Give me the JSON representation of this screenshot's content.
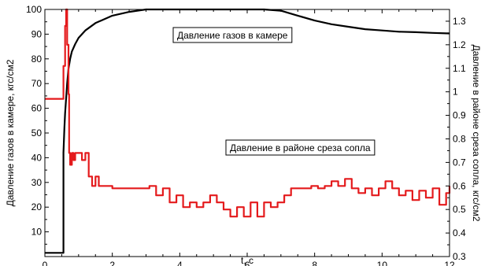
{
  "chart_data": {
    "type": "line",
    "xlabel": "t, c",
    "y1label": "Давление газов в камере, кгс/см2",
    "y2label": "Давление в районе среза сопла, кгс/см2",
    "xlim": [
      0,
      12
    ],
    "y1lim": [
      0,
      100
    ],
    "y2lim": [
      0.3,
      1.35
    ],
    "xticks": [
      "0",
      "2",
      "4",
      "6",
      "8",
      "10",
      "12"
    ],
    "y1ticks": [
      "10",
      "20",
      "30",
      "40",
      "50",
      "60",
      "70",
      "80",
      "90",
      "100"
    ],
    "y2ticks": [
      "0.3",
      "0.4",
      "0.5",
      "0.6",
      "0.7",
      "0.8",
      "0.9",
      "1",
      "1.1",
      "1.2",
      "1.3"
    ],
    "grid": false,
    "annotations": [
      {
        "text": "Давление газов в камере",
        "series": "chamber"
      },
      {
        "text": "Давление в районе среза сопла",
        "series": "nozzle"
      }
    ],
    "series": [
      {
        "id": "chamber",
        "axis": "left",
        "color": "#000000",
        "x": [
          0,
          0.4,
          0.5,
          0.55,
          0.55,
          0.58,
          0.6,
          0.63,
          0.66,
          0.7,
          0.75,
          0.8,
          0.9,
          1.0,
          1.2,
          1.5,
          2.0,
          2.5,
          3.0,
          3.5,
          4.0,
          4.5,
          5.0,
          5.5,
          6.0,
          6.5,
          7.0,
          7.5,
          8.0,
          8.5,
          9.0,
          9.5,
          10.0,
          10.5,
          11.0,
          11.5,
          12.0
        ],
        "y": [
          1.5,
          1.5,
          1.5,
          1.5,
          42,
          52,
          58,
          64,
          70,
          76,
          80,
          83,
          86,
          88.5,
          91.5,
          94.5,
          97.5,
          99,
          100,
          100.5,
          101,
          101.3,
          101.5,
          101.8,
          101.5,
          100.5,
          99.5,
          97.5,
          95.5,
          94,
          93,
          92,
          91.5,
          91,
          90.8,
          90.5,
          90.3
        ]
      },
      {
        "id": "nozzle",
        "axis": "right",
        "color": "#e41a1c",
        "x": [
          0,
          0.55,
          0.55,
          0.6,
          0.63,
          0.66,
          0.7,
          0.72,
          0.75,
          0.8,
          0.85,
          0.9,
          1.0,
          1.1,
          1.2,
          1.3,
          1.4,
          1.5,
          1.6,
          1.8,
          2.0,
          2.3,
          2.6,
          2.9,
          3.1,
          3.3,
          3.5,
          3.7,
          3.9,
          4.1,
          4.3,
          4.5,
          4.7,
          4.9,
          5.1,
          5.3,
          5.5,
          5.7,
          5.9,
          6.1,
          6.3,
          6.5,
          6.7,
          6.9,
          7.1,
          7.3,
          7.5,
          7.7,
          7.9,
          8.1,
          8.3,
          8.5,
          8.7,
          8.9,
          9.1,
          9.3,
          9.5,
          9.7,
          9.9,
          10.1,
          10.3,
          10.5,
          10.7,
          10.9,
          11.1,
          11.3,
          11.5,
          11.7,
          11.9,
          12.0
        ],
        "y": [
          0.97,
          0.97,
          1.11,
          1.28,
          1.36,
          1.2,
          0.99,
          0.74,
          0.69,
          0.74,
          0.71,
          0.74,
          0.74,
          0.71,
          0.74,
          0.64,
          0.6,
          0.64,
          0.6,
          0.6,
          0.59,
          0.59,
          0.59,
          0.59,
          0.6,
          0.56,
          0.59,
          0.53,
          0.56,
          0.51,
          0.53,
          0.51,
          0.53,
          0.56,
          0.53,
          0.5,
          0.47,
          0.51,
          0.47,
          0.53,
          0.47,
          0.53,
          0.51,
          0.53,
          0.56,
          0.59,
          0.59,
          0.59,
          0.6,
          0.59,
          0.6,
          0.62,
          0.6,
          0.63,
          0.59,
          0.57,
          0.59,
          0.56,
          0.59,
          0.62,
          0.59,
          0.56,
          0.58,
          0.54,
          0.58,
          0.55,
          0.59,
          0.52,
          0.57,
          0.6
        ]
      }
    ]
  }
}
